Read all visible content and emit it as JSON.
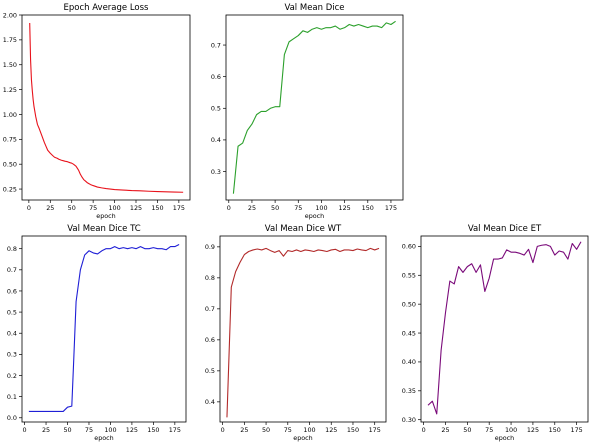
{
  "chart_data": [
    {
      "type": "line",
      "title": "Epoch Average Loss",
      "xlabel": "epoch",
      "ylabel": "",
      "xlim": [
        -8,
        188
      ],
      "ylim": [
        0.14,
        2.0
      ],
      "xticks": [
        "0",
        "25",
        "50",
        "75",
        "100",
        "125",
        "150",
        "175"
      ],
      "yticks": [
        "0.25",
        "0.50",
        "0.75",
        "1.00",
        "1.25",
        "1.50",
        "1.75",
        "2.00"
      ],
      "grid": false,
      "color": "#e8121b",
      "series": [
        {
          "x": [
            1,
            2,
            3,
            4,
            5,
            6,
            8,
            10,
            12,
            15,
            18,
            20,
            22,
            25,
            28,
            30,
            33,
            35,
            38,
            40,
            42,
            45,
            48,
            50,
            52,
            55,
            58,
            60,
            62,
            64,
            66,
            68,
            70,
            72,
            75,
            80,
            85,
            90,
            95,
            100,
            110,
            120,
            130,
            140,
            150,
            160,
            170,
            180
          ],
          "y": [
            1.92,
            1.55,
            1.35,
            1.24,
            1.15,
            1.08,
            0.98,
            0.9,
            0.86,
            0.79,
            0.72,
            0.68,
            0.64,
            0.61,
            0.585,
            0.57,
            0.56,
            0.55,
            0.54,
            0.535,
            0.53,
            0.525,
            0.515,
            0.51,
            0.5,
            0.48,
            0.44,
            0.4,
            0.37,
            0.345,
            0.33,
            0.315,
            0.305,
            0.295,
            0.285,
            0.27,
            0.262,
            0.255,
            0.25,
            0.245,
            0.24,
            0.235,
            0.232,
            0.228,
            0.225,
            0.222,
            0.22,
            0.218
          ]
        }
      ]
    },
    {
      "type": "line",
      "title": "Val Mean Dice",
      "xlabel": "epoch",
      "ylabel": "",
      "xlim": [
        -3,
        188
      ],
      "ylim": [
        0.21,
        0.795
      ],
      "xticks": [
        "0",
        "25",
        "50",
        "75",
        "100",
        "125",
        "150",
        "175"
      ],
      "yticks": [
        "0.3",
        "0.4",
        "0.5",
        "0.6",
        "0.7"
      ],
      "grid": false,
      "color": "#2ca02c",
      "series": [
        {
          "x": [
            5,
            10,
            15,
            20,
            25,
            30,
            35,
            40,
            45,
            50,
            55,
            60,
            65,
            70,
            75,
            80,
            85,
            90,
            95,
            100,
            105,
            110,
            115,
            120,
            125,
            130,
            135,
            140,
            145,
            150,
            155,
            160,
            165,
            170,
            175,
            180
          ],
          "y": [
            0.23,
            0.38,
            0.39,
            0.43,
            0.45,
            0.48,
            0.49,
            0.49,
            0.5,
            0.505,
            0.505,
            0.67,
            0.71,
            0.72,
            0.73,
            0.745,
            0.74,
            0.75,
            0.755,
            0.75,
            0.755,
            0.755,
            0.76,
            0.75,
            0.755,
            0.765,
            0.76,
            0.765,
            0.76,
            0.755,
            0.76,
            0.76,
            0.755,
            0.77,
            0.765,
            0.775
          ]
        }
      ]
    },
    {
      "type": "line",
      "title": "Val Mean Dice TC",
      "xlabel": "epoch",
      "ylabel": "",
      "xlim": [
        -3,
        188
      ],
      "ylim": [
        -0.02,
        0.86
      ],
      "xticks": [
        "0",
        "25",
        "50",
        "75",
        "100",
        "125",
        "150",
        "175"
      ],
      "yticks": [
        "0.0",
        "0.1",
        "0.2",
        "0.3",
        "0.4",
        "0.5",
        "0.6",
        "0.7",
        "0.8"
      ],
      "grid": false,
      "color": "#1f1fd6",
      "series": [
        {
          "x": [
            5,
            10,
            15,
            20,
            25,
            30,
            35,
            40,
            45,
            50,
            55,
            57,
            60,
            65,
            70,
            75,
            80,
            85,
            90,
            95,
            100,
            105,
            110,
            115,
            120,
            125,
            130,
            135,
            140,
            145,
            150,
            155,
            160,
            165,
            170,
            175,
            180
          ],
          "y": [
            0.03,
            0.03,
            0.03,
            0.03,
            0.03,
            0.03,
            0.03,
            0.03,
            0.03,
            0.05,
            0.055,
            0.25,
            0.55,
            0.7,
            0.77,
            0.79,
            0.78,
            0.775,
            0.79,
            0.8,
            0.8,
            0.81,
            0.8,
            0.805,
            0.8,
            0.805,
            0.8,
            0.81,
            0.8,
            0.8,
            0.805,
            0.8,
            0.8,
            0.795,
            0.81,
            0.81,
            0.82
          ]
        }
      ]
    },
    {
      "type": "line",
      "title": "Val Mean Dice WT",
      "xlabel": "epoch",
      "ylabel": "",
      "xlim": [
        -3,
        188
      ],
      "ylim": [
        0.335,
        0.935
      ],
      "xticks": [
        "0",
        "25",
        "50",
        "75",
        "100",
        "125",
        "150",
        "175"
      ],
      "yticks": [
        "0.4",
        "0.5",
        "0.6",
        "0.7",
        "0.8",
        "0.9"
      ],
      "grid": false,
      "color": "#b22a2a",
      "series": [
        {
          "x": [
            5,
            10,
            15,
            20,
            25,
            30,
            35,
            40,
            45,
            50,
            55,
            60,
            65,
            70,
            75,
            80,
            85,
            90,
            95,
            100,
            105,
            110,
            115,
            120,
            125,
            130,
            135,
            140,
            145,
            150,
            155,
            160,
            165,
            170,
            175,
            180
          ],
          "y": [
            0.35,
            0.77,
            0.82,
            0.85,
            0.875,
            0.885,
            0.89,
            0.893,
            0.89,
            0.895,
            0.888,
            0.882,
            0.888,
            0.87,
            0.888,
            0.885,
            0.89,
            0.885,
            0.89,
            0.888,
            0.885,
            0.89,
            0.888,
            0.885,
            0.89,
            0.892,
            0.885,
            0.89,
            0.89,
            0.888,
            0.893,
            0.89,
            0.888,
            0.895,
            0.89,
            0.895
          ]
        }
      ]
    },
    {
      "type": "line",
      "title": "Val Mean Dice ET",
      "xlabel": "epoch",
      "ylabel": "",
      "xlim": [
        -3,
        188
      ],
      "ylim": [
        0.296,
        0.618
      ],
      "xticks": [
        "0",
        "25",
        "50",
        "75",
        "100",
        "125",
        "150",
        "175"
      ],
      "yticks": [
        "0.30",
        "0.35",
        "0.40",
        "0.45",
        "0.50",
        "0.55",
        "0.60"
      ],
      "grid": false,
      "color": "#7a0a7a",
      "series": [
        {
          "x": [
            5,
            10,
            15,
            20,
            25,
            30,
            35,
            40,
            45,
            50,
            55,
            60,
            65,
            70,
            75,
            80,
            85,
            90,
            95,
            100,
            105,
            110,
            115,
            120,
            125,
            130,
            135,
            140,
            145,
            150,
            155,
            160,
            165,
            170,
            175,
            180
          ],
          "y": [
            0.325,
            0.332,
            0.31,
            0.42,
            0.485,
            0.54,
            0.535,
            0.565,
            0.555,
            0.565,
            0.57,
            0.555,
            0.568,
            0.522,
            0.545,
            0.578,
            0.578,
            0.58,
            0.594,
            0.59,
            0.59,
            0.588,
            0.585,
            0.595,
            0.572,
            0.6,
            0.602,
            0.603,
            0.6,
            0.585,
            0.592,
            0.59,
            0.578,
            0.605,
            0.595,
            0.608
          ]
        }
      ]
    }
  ]
}
